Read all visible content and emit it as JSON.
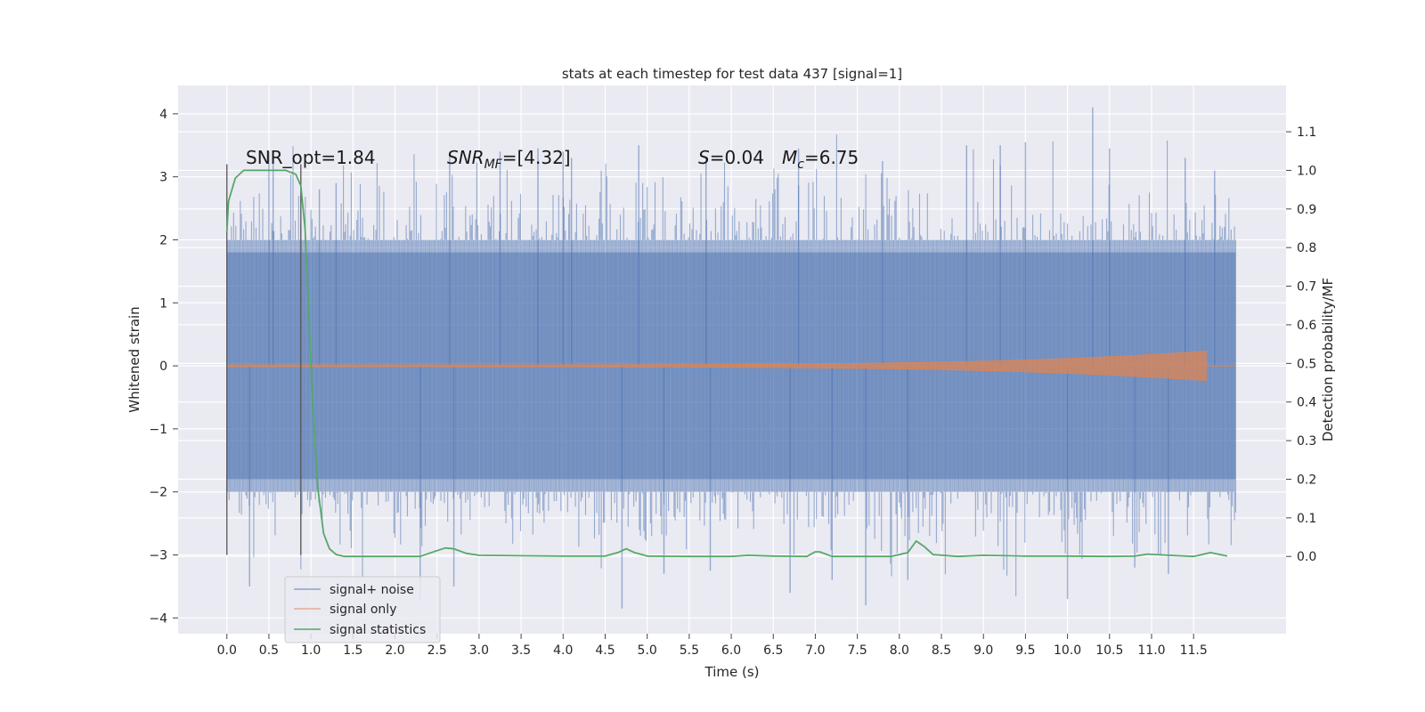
{
  "chart_data": {
    "type": "line",
    "title": "stats at each timestep for test data 437 [signal=1]",
    "xlabel": "Time (s)",
    "ylabel": "Whitened strain",
    "ylabel_right": "Detection probability/MF",
    "xlim": [
      -0.58,
      12.6
    ],
    "ylim": [
      -4.25,
      4.45
    ],
    "ylim_right": [
      -0.2,
      1.22
    ],
    "x_ticks": [
      "0.0",
      "0.5",
      "1.0",
      "1.5",
      "2.0",
      "2.5",
      "3.0",
      "3.5",
      "4.0",
      "4.5",
      "5.0",
      "5.5",
      "6.0",
      "6.5",
      "7.0",
      "7.5",
      "8.0",
      "8.5",
      "9.0",
      "9.5",
      "10.0",
      "10.5",
      "11.0",
      "11.5"
    ],
    "y_ticks_left": [
      "−4",
      "−3",
      "−2",
      "−1",
      "0",
      "1",
      "2",
      "3",
      "4"
    ],
    "y_ticks_right": [
      "0.0",
      "0.1",
      "0.2",
      "0.3",
      "0.4",
      "0.5",
      "0.6",
      "0.7",
      "0.8",
      "0.9",
      "1.0",
      "1.1"
    ],
    "grid": true,
    "legend_placement": "lower-left",
    "annotations": {
      "snr_opt": "SNR_opt=1.84",
      "snr_mf_main": "SNR",
      "snr_mf_sub": "MF",
      "snr_mf_value": "=[4.32]",
      "s_symbol": "S",
      "s_value": "=0.04",
      "mc_symbol": "M",
      "mc_sub": "c",
      "mc_value": "=6.75"
    },
    "vertical_lines": [
      0.0,
      0.88
    ],
    "vertical_line_range": [
      -3.0,
      3.2
    ],
    "series": [
      {
        "name": "signal+ noise",
        "color": "#4c72b0",
        "kind": "noise-band",
        "x_range": [
          0.0,
          12.0
        ],
        "typical_envelope": [
          -1.8,
          1.8
        ],
        "outlier_peaks": [
          [
            0.27,
            -3.5
          ],
          [
            0.5,
            3.4
          ],
          [
            0.55,
            3.3
          ],
          [
            1.1,
            2.8
          ],
          [
            1.3,
            2.9
          ],
          [
            2.3,
            -3.7
          ],
          [
            2.65,
            3.4
          ],
          [
            2.7,
            -3.5
          ],
          [
            3.25,
            3.4
          ],
          [
            3.7,
            3.45
          ],
          [
            4.0,
            3.4
          ],
          [
            4.1,
            3.3
          ],
          [
            4.7,
            -3.85
          ],
          [
            4.9,
            3.5
          ],
          [
            5.2,
            -3.3
          ],
          [
            5.7,
            3.3
          ],
          [
            5.75,
            -3.25
          ],
          [
            6.7,
            -3.6
          ],
          [
            6.8,
            3.45
          ],
          [
            7.2,
            -3.4
          ],
          [
            7.6,
            -3.8
          ],
          [
            7.8,
            3.25
          ],
          [
            8.1,
            -3.4
          ],
          [
            8.8,
            3.5
          ],
          [
            9.2,
            3.5
          ],
          [
            9.5,
            3.55
          ],
          [
            10.0,
            -3.7
          ],
          [
            10.3,
            4.1
          ],
          [
            10.5,
            3.45
          ],
          [
            10.8,
            -3.2
          ],
          [
            11.2,
            -3.3
          ],
          [
            11.4,
            3.3
          ],
          [
            11.75,
            3.1
          ]
        ]
      },
      {
        "name": "signal only",
        "color": "#dd8452",
        "kind": "chirp",
        "x_range": [
          0.0,
          11.65
        ],
        "amplitude_end": 0.22
      },
      {
        "name": "signal statistics",
        "color": "#55a868",
        "kind": "line",
        "axis": "right",
        "x": [
          0.0,
          0.02,
          0.1,
          0.2,
          0.35,
          0.5,
          0.7,
          0.82,
          0.88,
          0.93,
          0.97,
          1.02,
          1.08,
          1.15,
          1.22,
          1.3,
          1.4,
          1.6,
          2.0,
          2.3,
          2.5,
          2.6,
          2.7,
          2.85,
          3.0,
          3.5,
          4.0,
          4.5,
          4.65,
          4.75,
          4.85,
          5.0,
          5.5,
          6.0,
          6.2,
          6.5,
          6.9,
          7.0,
          7.05,
          7.2,
          7.5,
          7.9,
          8.1,
          8.2,
          8.3,
          8.4,
          8.7,
          9.0,
          9.5,
          10.0,
          10.5,
          10.8,
          10.95,
          11.2,
          11.5,
          11.7,
          11.9
        ],
        "y": [
          0.84,
          0.92,
          0.98,
          1.0,
          1.0,
          1.0,
          1.0,
          0.99,
          0.96,
          0.85,
          0.65,
          0.4,
          0.18,
          0.06,
          0.02,
          0.005,
          0.0,
          0.0,
          0.0,
          0.0,
          0.015,
          0.022,
          0.02,
          0.008,
          0.003,
          0.002,
          0.001,
          0.001,
          0.01,
          0.02,
          0.01,
          0.001,
          0.0,
          0.0,
          0.003,
          0.001,
          0.0,
          0.012,
          0.012,
          0.0,
          0.0,
          0.0,
          0.01,
          0.04,
          0.025,
          0.005,
          0.0,
          0.003,
          0.001,
          0.001,
          0.0,
          0.001,
          0.006,
          0.003,
          0.0,
          0.01,
          0.001
        ]
      }
    ]
  }
}
